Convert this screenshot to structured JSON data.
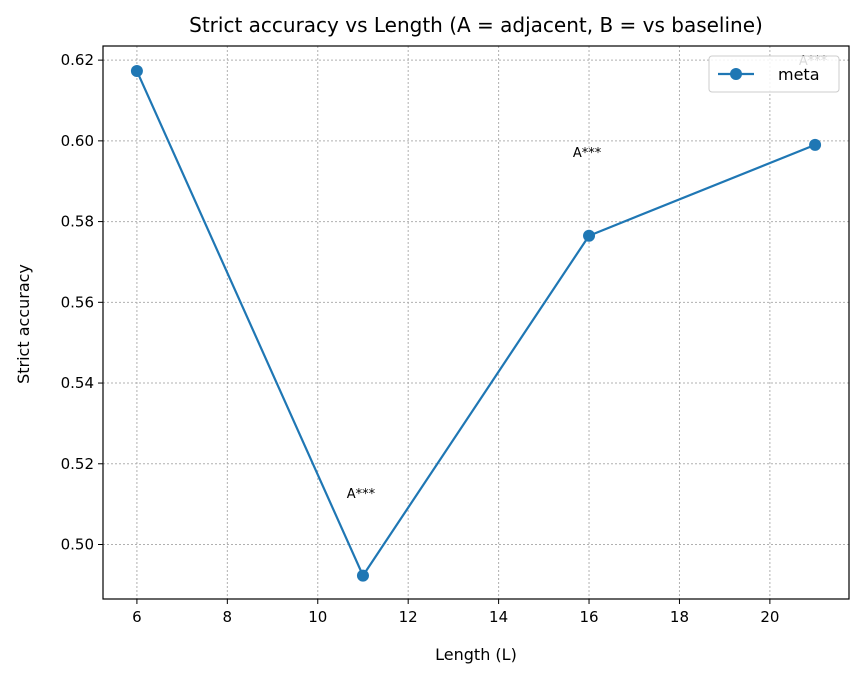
{
  "chart_data": {
    "type": "line",
    "title": "Strict accuracy vs Length (A = adjacent, B = vs baseline)",
    "xlabel": "Length (L)",
    "ylabel": "Strict accuracy",
    "xlim": [
      5.25,
      21.75
    ],
    "ylim": [
      0.4865,
      0.6235
    ],
    "xticks": [
      6,
      8,
      10,
      12,
      14,
      16,
      18,
      20
    ],
    "xtick_labels": [
      "6",
      "8",
      "10",
      "12",
      "14",
      "16",
      "18",
      "20"
    ],
    "yticks": [
      0.5,
      0.52,
      0.54,
      0.56,
      0.58,
      0.6,
      0.62
    ],
    "ytick_labels": [
      "0.50",
      "0.52",
      "0.54",
      "0.56",
      "0.58",
      "0.60",
      "0.62"
    ],
    "grid": true,
    "legend_position": "top-right",
    "series": [
      {
        "name": "meta",
        "color": "#1f77b4",
        "marker": "circle",
        "x": [
          6,
          11,
          16,
          21
        ],
        "y": [
          0.6173,
          0.4923,
          0.5765,
          0.599
        ]
      }
    ],
    "annotations": [
      {
        "text": "A***",
        "x": 11,
        "y": 0.5125
      },
      {
        "text": "A***",
        "x": 16,
        "y": 0.597
      },
      {
        "text": "A***",
        "x": 21,
        "y": 0.6198
      }
    ]
  }
}
